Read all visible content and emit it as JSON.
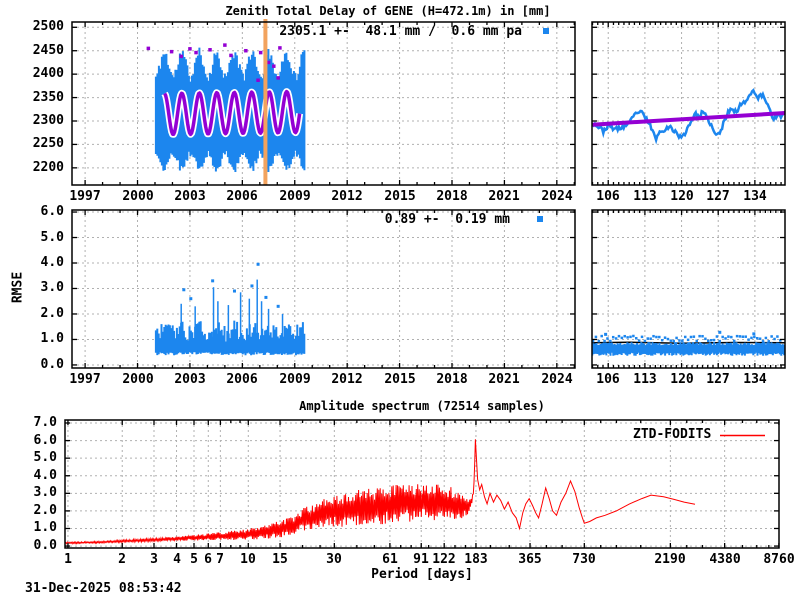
{
  "timestamp": "31-Dec-2025 08:53:42",
  "colors": {
    "blue": "#1c86ee",
    "magenta": "#9400d3",
    "orange": "#f2a35e",
    "red": "#ff0000",
    "grid": "#b0b0b0",
    "black": "#000000",
    "white": "#ffffff"
  },
  "chart_data": [
    {
      "id": "ztd",
      "type": "scatter",
      "title": "Zenith Total Delay of GENE (H=472.1m) in [mm]",
      "annotation": "2305.1 +-  48.1 mm /  0.6 mm pa",
      "x_range": [
        1996.25,
        2025.04
      ],
      "y_range": [
        2163.4,
        2511.3
      ],
      "x_ticks": [
        1997,
        2000,
        2003,
        2006,
        2009,
        2012,
        2015,
        2018,
        2021,
        2024
      ],
      "x_minor_step": 1,
      "y_ticks": [
        2200,
        2250,
        2300,
        2350,
        2400,
        2450,
        2500
      ],
      "y_decimals": 0,
      "show_y_labels": true,
      "series": [
        {
          "name": "ztd-daily-estimates",
          "style": "vertical-band",
          "color_key": "blue",
          "seed": 11,
          "x_start": 2001.05,
          "x_end": 2009.55,
          "center": 2315,
          "phase_peak_year": 2001.54,
          "band": {
            "top_seasonal": 25,
            "top_base": 92,
            "top_jitter": 25,
            "bottom_seasonal": 16,
            "bottom_base": 93,
            "bottom_jitter": 16
          }
        },
        {
          "name": "fodits-model-fit",
          "style": "sine-line",
          "color_key": "magenta",
          "casing_key": "white",
          "x_start": 2001.55,
          "x_end": 2009.3,
          "mean": 2317,
          "amplitude": 44,
          "phase_peak_year": 2001.54,
          "trend_per_year": 0.6
        },
        {
          "name": "flagged-outliers",
          "style": "points",
          "color_key": "magenta",
          "size": 3.5,
          "points": [
            [
              2000.62,
              2455
            ],
            [
              2001.95,
              2448
            ],
            [
              2002.5,
              2438
            ],
            [
              2003.0,
              2454
            ],
            [
              2003.35,
              2446
            ],
            [
              2004.15,
              2452
            ],
            [
              2005.0,
              2462
            ],
            [
              2005.35,
              2440
            ],
            [
              2006.2,
              2450
            ],
            [
              2006.9,
              2387
            ],
            [
              2007.05,
              2446
            ],
            [
              2007.5,
              2425
            ],
            [
              2007.8,
              2417
            ],
            [
              2008.05,
              2392
            ],
            [
              2008.15,
              2456
            ]
          ]
        },
        {
          "name": "discontinuity-event",
          "style": "vline",
          "color_key": "orange",
          "x": 2007.32,
          "width": 4
        }
      ]
    },
    {
      "id": "ztd-zoom",
      "type": "line",
      "x_range": [
        102.9,
        139.75
      ],
      "y_range": [
        2163.4,
        2511.3
      ],
      "x_ticks": [
        106,
        113,
        120,
        127,
        134
      ],
      "x_minor_step": 1,
      "y_ticks": [
        2200,
        2250,
        2300,
        2350,
        2400,
        2450,
        2500
      ],
      "y_decimals": 0,
      "show_y_labels": false,
      "series": [
        {
          "name": "ztd-zoom-trace",
          "style": "jitter-line",
          "color_key": "blue",
          "seed": 23,
          "width": 2.5,
          "jitter": 5,
          "anchors": [
            [
              102.9,
              2297
            ],
            [
              104.5,
              2285
            ],
            [
              105,
              2278
            ],
            [
              106,
              2290
            ],
            [
              107.5,
              2282
            ],
            [
              109,
              2288
            ],
            [
              110,
              2295
            ],
            [
              111.5,
              2320
            ],
            [
              112.5,
              2316
            ],
            [
              114,
              2292
            ],
            [
              115,
              2262
            ],
            [
              116,
              2278
            ],
            [
              117.5,
              2288
            ],
            [
              119,
              2276
            ],
            [
              120,
              2262
            ],
            [
              121,
              2282
            ],
            [
              122.5,
              2315
            ],
            [
              123.5,
              2308
            ],
            [
              124,
              2320
            ],
            [
              125.5,
              2295
            ],
            [
              126.5,
              2268
            ],
            [
              127.5,
              2278
            ],
            [
              128.5,
              2310
            ],
            [
              129.5,
              2330
            ],
            [
              130.5,
              2318
            ],
            [
              131.5,
              2340
            ],
            [
              132.5,
              2344
            ],
            [
              133.5,
              2368
            ],
            [
              134.5,
              2350
            ],
            [
              135.5,
              2355
            ],
            [
              136.5,
              2335
            ],
            [
              137.5,
              2306
            ],
            [
              138.5,
              2310
            ],
            [
              139.7,
              2312
            ]
          ]
        },
        {
          "name": "model-trend-zoom",
          "style": "line",
          "color_key": "magenta",
          "width": 4,
          "anchors": [
            [
              102.9,
              2292
            ],
            [
              139.75,
              2317
            ]
          ]
        }
      ]
    },
    {
      "id": "rmse",
      "type": "scatter",
      "ylabel": "RMSE",
      "annotation": "0.89 +-  0.19 mm",
      "x_range": [
        1996.25,
        2025.04
      ],
      "y_range": [
        -0.12,
        6.08
      ],
      "x_ticks": [
        1997,
        2000,
        2003,
        2006,
        2009,
        2012,
        2015,
        2018,
        2021,
        2024
      ],
      "x_minor_step": 1,
      "y_ticks": [
        0,
        1,
        2,
        3,
        4,
        5,
        6
      ],
      "y_decimals": 1,
      "show_y_labels": true,
      "series": [
        {
          "name": "rmse-daily",
          "style": "vertical-band-simple",
          "color_key": "blue",
          "seed": 31,
          "x_start": 2001.05,
          "x_end": 2009.55,
          "bottom": 0.44,
          "bottom_jitter": 0.12,
          "top": 1.0,
          "top_jitter": 0.68,
          "seasonal": 0.1,
          "phase_peak_year": 2001.54
        },
        {
          "name": "rmse-spikes",
          "style": "spikes",
          "color_key": "blue",
          "base": 1.0,
          "points": [
            [
              2002.5,
              2.4
            ],
            [
              2003.3,
              2.3
            ],
            [
              2004.35,
              3.05
            ],
            [
              2004.6,
              2.5
            ],
            [
              2005.2,
              2.35
            ],
            [
              2005.9,
              2.85
            ],
            [
              2006.4,
              2.6
            ],
            [
              2006.85,
              3.35
            ],
            [
              2007.1,
              2.5
            ],
            [
              2007.5,
              2.2
            ],
            [
              2008.3,
              2.0
            ]
          ]
        },
        {
          "name": "rmse-outlier-dots",
          "style": "points",
          "color_key": "blue",
          "size": 3,
          "points": [
            [
              2002.65,
              2.95
            ],
            [
              2003.05,
              2.6
            ],
            [
              2004.3,
              3.3
            ],
            [
              2005.55,
              2.9
            ],
            [
              2006.55,
              3.1
            ],
            [
              2006.9,
              3.95
            ],
            [
              2007.35,
              2.65
            ],
            [
              2008.05,
              2.3
            ]
          ]
        }
      ]
    },
    {
      "id": "rmse-zoom",
      "type": "scatter",
      "x_range": [
        102.9,
        139.75
      ],
      "y_range": [
        -0.12,
        6.08
      ],
      "x_ticks": [
        106,
        113,
        120,
        127,
        134
      ],
      "x_minor_step": 1,
      "y_ticks": [
        0,
        1,
        2,
        3,
        4,
        5,
        6
      ],
      "y_decimals": 1,
      "show_y_labels": false,
      "series": [
        {
          "name": "rmse-zoom-reference",
          "style": "line",
          "color_key": "black",
          "width": 1.5,
          "anchors": [
            [
              102.9,
              0.87
            ],
            [
              110,
              0.89
            ],
            [
              120,
              0.85
            ],
            [
              130,
              0.88
            ],
            [
              139.75,
              0.87
            ]
          ]
        },
        {
          "name": "rmse-zoom-band",
          "style": "vertical-band-simple",
          "color_key": "blue",
          "seed": 47,
          "x_start": 102.95,
          "x_end": 139.6,
          "bottom": 0.42,
          "bottom_jitter": 0.12,
          "top": 0.78,
          "top_jitter": 0.12,
          "seasonal": 0,
          "phase_peak_year": 0
        },
        {
          "name": "rmse-zoom-dot-row",
          "style": "dot-row",
          "color_key": "blue",
          "seed": 53,
          "x_start": 103.1,
          "x_end": 139.4,
          "step": 0.55,
          "base": 0.92,
          "jitter": 0.22,
          "size": 2.5
        },
        {
          "name": "rmse-zoom-peaks",
          "style": "points",
          "color_key": "blue",
          "size": 3,
          "points": [
            [
              105.5,
              1.2
            ],
            [
              127.3,
              1.28
            ],
            [
              133.8,
              1.22
            ]
          ]
        }
      ]
    },
    {
      "id": "amplitude-spectrum",
      "type": "line",
      "title": "Amplitude spectrum (72514 samples)",
      "legend": [
        "ZTD-FODITS"
      ],
      "xlabel": "Period [days]",
      "x_scale": "log",
      "x_range": [
        0.963,
        8768
      ],
      "y_range": [
        -0.11,
        7.17
      ],
      "x_ticks": [
        1,
        2,
        3,
        4,
        5,
        6,
        7,
        10,
        15,
        30,
        61,
        91,
        122,
        183,
        365,
        730,
        2190,
        4380,
        8760
      ],
      "x_ticks_minor": [
        8,
        9,
        20,
        25,
        40,
        50,
        70,
        80,
        100,
        140,
        160,
        220,
        280,
        450,
        550,
        900,
        1100,
        1500,
        2700,
        3300,
        5500,
        6600,
        7700
      ],
      "y_ticks": [
        0,
        1,
        2,
        3,
        4,
        5,
        6,
        7
      ],
      "y_decimals": 1,
      "show_y_labels": true,
      "series": [
        {
          "name": "ZTD-FODITS",
          "style": "noisy-log-line",
          "color_key": "red",
          "seed": 71,
          "width": 1,
          "noise_profile": [
            [
              1,
              0.05
            ],
            [
              2,
              0.07
            ],
            [
              4,
              0.12
            ],
            [
              8,
              0.28
            ],
            [
              12,
              0.4
            ],
            [
              18,
              0.55
            ],
            [
              25,
              0.85
            ],
            [
              40,
              1.05
            ],
            [
              60,
              1.1
            ],
            [
              90,
              1.1
            ],
            [
              120,
              1.05
            ],
            [
              145,
              0.9
            ],
            [
              160,
              0.6
            ],
            [
              172,
              0.3
            ],
            [
              180,
              0.1
            ],
            [
              200,
              0
            ],
            [
              8760,
              0
            ]
          ],
          "anchors": [
            [
              1,
              0.18
            ],
            [
              1.5,
              0.22
            ],
            [
              2,
              0.28
            ],
            [
              3,
              0.36
            ],
            [
              4,
              0.42
            ],
            [
              5,
              0.48
            ],
            [
              6,
              0.52
            ],
            [
              7,
              0.56
            ],
            [
              8,
              0.6
            ],
            [
              10,
              0.68
            ],
            [
              12,
              0.8
            ],
            [
              15,
              0.95
            ],
            [
              18,
              1.2
            ],
            [
              20,
              1.5
            ],
            [
              25,
              1.8
            ],
            [
              30,
              2.0
            ],
            [
              38,
              2.1
            ],
            [
              45,
              2.2
            ],
            [
              55,
              2.3
            ],
            [
              61,
              2.4
            ],
            [
              70,
              2.45
            ],
            [
              80,
              2.5
            ],
            [
              91,
              2.6
            ],
            [
              105,
              2.5
            ],
            [
              120,
              2.45
            ],
            [
              135,
              2.4
            ],
            [
              150,
              2.3
            ],
            [
              165,
              2.2
            ],
            [
              172,
              2.4
            ],
            [
              178,
              3.2
            ],
            [
              183,
              6.9
            ],
            [
              187,
              3.8
            ],
            [
              192,
              3.2
            ],
            [
              197,
              3.5
            ],
            [
              204,
              2.8
            ],
            [
              211,
              2.4
            ],
            [
              219,
              3.0
            ],
            [
              229,
              2.5
            ],
            [
              239,
              2.9
            ],
            [
              251,
              2.6
            ],
            [
              263,
              2.1
            ],
            [
              276,
              2.5
            ],
            [
              291,
              1.9
            ],
            [
              306,
              1.6
            ],
            [
              319,
              1.0
            ],
            [
              333,
              1.9
            ],
            [
              346,
              2.4
            ],
            [
              361,
              2.7
            ],
            [
              377,
              2.3
            ],
            [
              392,
              1.9
            ],
            [
              407,
              1.6
            ],
            [
              426,
              2.4
            ],
            [
              446,
              3.3
            ],
            [
              466,
              2.7
            ],
            [
              487,
              2.0
            ],
            [
              512,
              1.75
            ],
            [
              542,
              2.5
            ],
            [
              576,
              3.0
            ],
            [
              612,
              3.7
            ],
            [
              647,
              3.1
            ],
            [
              683,
              2.2
            ],
            [
              712,
              1.6
            ],
            [
              730,
              1.3
            ],
            [
              782,
              1.4
            ],
            [
              852,
              1.6
            ],
            [
              952,
              1.75
            ],
            [
              1100,
              2.0
            ],
            [
              1300,
              2.4
            ],
            [
              1520,
              2.7
            ],
            [
              1710,
              2.9
            ],
            [
              2010,
              2.8
            ],
            [
              2310,
              2.65
            ],
            [
              2610,
              2.5
            ],
            [
              3000,
              2.38
            ]
          ]
        }
      ]
    }
  ]
}
